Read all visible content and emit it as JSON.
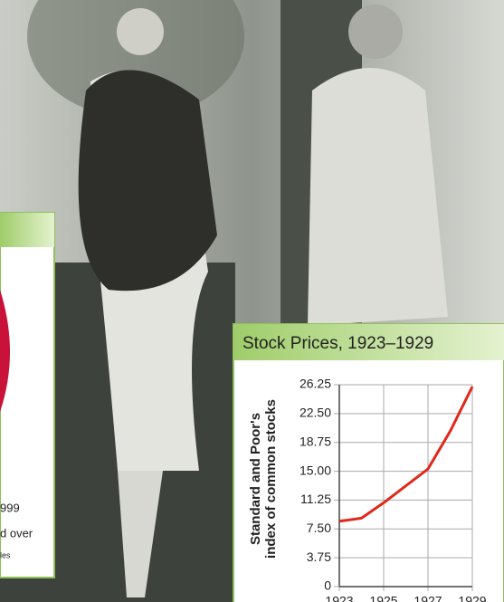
{
  "chart_data": {
    "type": "line",
    "title": "Stock Prices, 1923–1929",
    "ylabel": [
      "Standard and Poor's",
      "index of common stocks"
    ],
    "x": [
      1923,
      1924,
      1925,
      1926,
      1927,
      1928,
      1929
    ],
    "series": [
      {
        "color": "#e0281c",
        "values": [
          8.5,
          8.9,
          10.9,
          13.1,
          15.3,
          20.2,
          26
        ]
      }
    ],
    "xlim": [
      1923,
      1929
    ],
    "xticks": [
      1923,
      1925,
      1927,
      1929
    ],
    "ylim": [
      0,
      26.25
    ],
    "yticks": [
      0,
      3.75,
      {
        "value": 7.5,
        "label": "7.50"
      },
      11.25,
      {
        "value": 15,
        "label": "15.00"
      },
      18.75,
      {
        "value": 22.5,
        "label": "22.50"
      },
      26.25
    ],
    "grid": true
  },
  "side_panel": {
    "lines": [
      "999",
      "d over",
      "les"
    ]
  }
}
